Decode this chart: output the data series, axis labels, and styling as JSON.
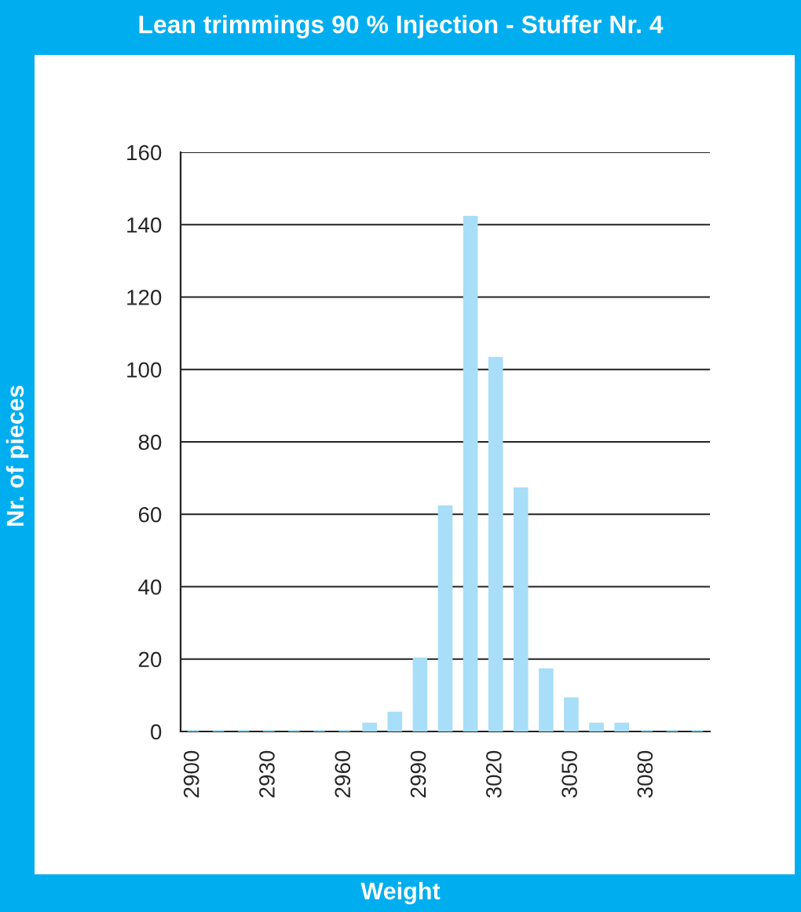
{
  "chart_data": {
    "type": "bar",
    "title": "Lean trimmings 90 % Injection - Stuffer Nr. 4",
    "xlabel": "Weight",
    "ylabel": "Nr. of pieces",
    "categories": [
      "2900",
      null,
      null,
      "2930",
      null,
      null,
      "2960",
      null,
      null,
      "2990",
      null,
      null,
      "3020",
      null,
      null,
      "3050",
      null,
      null,
      "3080",
      null,
      null
    ],
    "values": [
      0,
      0,
      0,
      0,
      0,
      0,
      0,
      2,
      5,
      20,
      62,
      142,
      103,
      67,
      17,
      9,
      2,
      2,
      0,
      0,
      0
    ],
    "color": "#a8def7",
    "ylim": [
      0,
      160
    ],
    "yticks": [
      0,
      20,
      40,
      60,
      80,
      100,
      120,
      140,
      160
    ],
    "grid": "y",
    "legend": false
  }
}
